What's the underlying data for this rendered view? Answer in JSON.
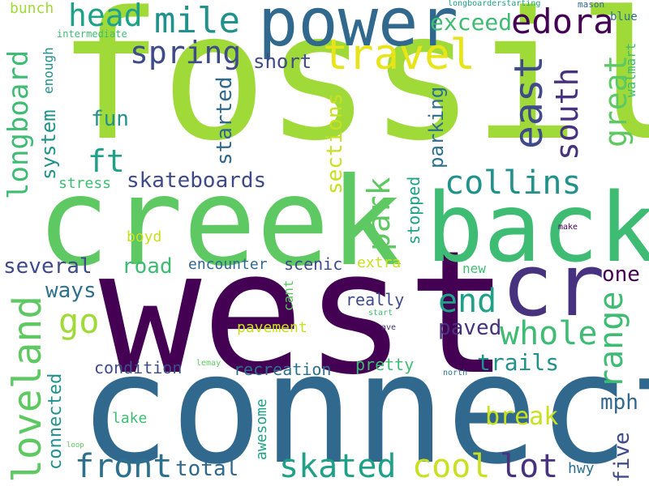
{
  "wordcloud": {
    "palette": {
      "dark_purple": "#440154",
      "purple": "#46327e",
      "indigo": "#3e4a89",
      "blue": "#31688e",
      "steel": "#2d708e",
      "teal": "#21918c",
      "sea": "#1fa187",
      "green": "#3fbc73",
      "light_green": "#5ec962",
      "lime": "#a0da39",
      "yellow_green": "#c8e020",
      "yellow": "#e7e419"
    },
    "words": [
      "fossil",
      "west",
      "connect",
      "creek",
      "back",
      "power",
      "cr",
      "travel",
      "mile",
      "loveland",
      "spring",
      "head",
      "edora",
      "east",
      "longboard",
      "south",
      "collins",
      "great",
      "park",
      "end",
      "skated",
      "whole",
      "range",
      "front",
      "lot",
      "cool",
      "go",
      "ft",
      "skateboards",
      "exceed",
      "short",
      "fun",
      "system",
      "started",
      "sections",
      "parking",
      "walmart",
      "mph",
      "five",
      "several",
      "road",
      "encounter",
      "scenic",
      "one",
      "ways",
      "really",
      "paved",
      "connected",
      "trails",
      "break",
      "total",
      "condition",
      "recreation",
      "pretty",
      "pavement",
      "extra",
      "stopped",
      "stress",
      "boyd",
      "cant",
      "new",
      "awesome",
      "lake",
      "hwy",
      "bunch",
      "enough",
      "intermediate",
      "blue",
      "mason",
      "longboarderstarting",
      "make",
      "start",
      "ave",
      "lemay",
      "north",
      "loop"
    ]
  }
}
